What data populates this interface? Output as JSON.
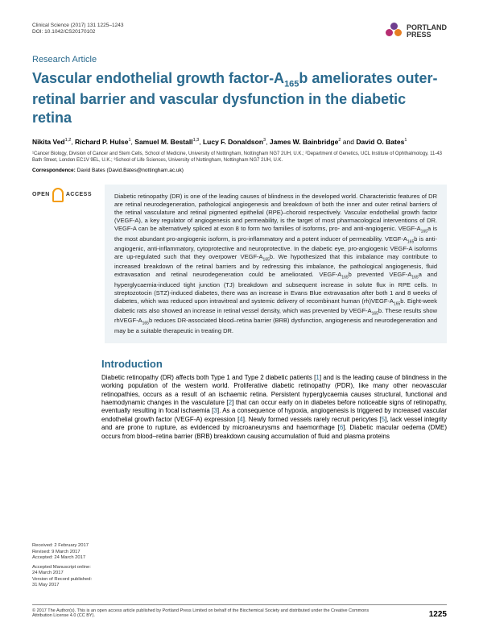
{
  "header": {
    "journal_line": "Clinical Science (2017) 131 1225–1243",
    "doi_line": "DOI: 10.1042/CS20170102",
    "logo_text_1": "PORTLAND",
    "logo_text_2": "PRESS"
  },
  "article_type": "Research Article",
  "title_html": "Vascular endothelial growth factor-A<sub>165</sub>b ameliorates outer-retinal barrier and vascular dysfunction in the diabetic retina",
  "authors_html": "<span class='name'>Nikita Ved</span><sup>1,2</sup>, <span class='name'>Richard P. Hulse</span><sup>1</sup>, <span class='name'>Samuel M. Bestall</span><sup>1,3</sup>, <span class='name'>Lucy F. Donaldson</span><sup>3</sup>, <span class='name'>James W. Bainbridge</span><sup>2</sup> and <span class='name'>David O. Bates</span><sup>1</sup>",
  "affiliations": "¹Cancer Biology, Division of Cancer and Stem Cells, School of Medicine, University of Nottingham, Nottingham NG7 2UH, U.K.; ²Department of Genetics, UCL Institute of Ophthalmology, 11-43 Bath Street, London EC1V 9EL, U.K.; ³School of Life Sciences, University of Nottingham, Nottingham NG7 2UH, U.K.",
  "correspondence_label": "Correspondence:",
  "correspondence_text": " David Bates (David.Bates@nottingham.ac.uk)",
  "oa": {
    "open": "OPEN",
    "lock_color": "#f39c12",
    "access": "ACCESS"
  },
  "abstract_html": "Diabetic retinopathy (DR) is one of the leading causes of blindness in the developed world. Characteristic features of DR are retinal neurodegeneration, pathological angiogenesis and breakdown of both the inner and outer retinal barriers of the retinal vasculature and retinal pigmented epithelial (RPE)–choroid respectively. Vascular endothelial growth factor (VEGF-A), a key regulator of angiogenesis and permeability, is the target of most pharmacological interventions of DR. VEGF-A can be alternatively spliced at exon 8 to form two families of isoforms, pro- and anti-angiogenic. VEGF-A<sub>165</sub>a is the most abundant pro-angiogenic isoform, is pro-inflammatory and a potent inducer of permeability. VEGF-A<sub>165</sub>b is anti-angiogenic, anti-inflammatory, cytoprotective and neuroprotective. In the diabetic eye, pro-angiogenic VEGF-A isoforms are up-regulated such that they overpower VEGF-A<sub>165</sub>b. We hypothesized that this imbalance may contribute to increased breakdown of the retinal barriers and by redressing this imbalance, the pathological angiogenesis, fluid extravasation and retinal neurodegeneration could be ameliorated. VEGF-A<sub>165</sub>b prevented VEGF-A<sub>165</sub>a and hyperglycaemia-induced tight junction (TJ) breakdown and subsequent increase in solute flux in RPE cells. In streptozotocin (STZ)-induced diabetes, there was an increase in Evans Blue extravasation after both 1 and 8 weeks of diabetes, which was reduced upon intravitreal and systemic delivery of recombinant human (rh)VEGF-A<sub>165</sub>b. Eight-week diabetic rats also showed an increase in retinal vessel density, which was prevented by VEGF-A<sub>165</sub>b. These results show rhVEGF-A<sub>165</sub>b reduces DR-associated blood–retina barrier (BRB) dysfunction, angiogenesis and neurodegeneration and may be a suitable therapeutic in treating DR.",
  "intro_heading": "Introduction",
  "intro_body_html": "Diabetic retinopathy (DR) affects both Type 1 and Type 2 diabetic patients [<span class='ref'>1</span>] and is the leading cause of blindness in the working population of the western world. Proliferative diabetic retinopathy (PDR), like many other neovascular retinopathies, occurs as a result of an ischaemic retina. Persistent hyperglycaemia causes structural, functional and haemodynamic changes in the vasculature [<span class='ref'>2</span>] that can occur early on in diabetes before noticeable signs of retinopathy, eventually resulting in focal ischaemia [<span class='ref'>3</span>]. As a consequence of hypoxia, angiogenesis is triggered by increased vascular endothelial growth factor (VEGF-A) expression [<span class='ref'>4</span>]. Newly formed vessels rarely recruit pericytes [<span class='ref'>5</span>], lack vessel integrity and are prone to rupture, as evidenced by microaneurysms and haemorrhage [<span class='ref'>6</span>]. Diabetic macular oedema (DME) occurs from blood–retina barrier (BRB) breakdown causing accumulation of fluid and plasma proteins",
  "dates": {
    "received": "Received: 2 February 2017",
    "revised": "Revised: 9 March 2017",
    "accepted": "Accepted: 24 March 2017",
    "accepted_online": "Accepted Manuscript online: 24 March 2017",
    "version": "Version of Record published: 31 May 2017"
  },
  "footer": {
    "copyright": "© 2017 The Author(s). This is an open access article published by Portland Press Limited on behalf of the Biochemical Society and distributed under the Creative Commons Attribution License 4.0 (CC BY).",
    "page_number": "1225"
  },
  "colors": {
    "heading": "#2a6a8e",
    "abstract_bg": "#eef3f6",
    "logo_purple": "#703e8f",
    "logo_pink": "#b62d71",
    "logo_orange": "#e67e22"
  }
}
